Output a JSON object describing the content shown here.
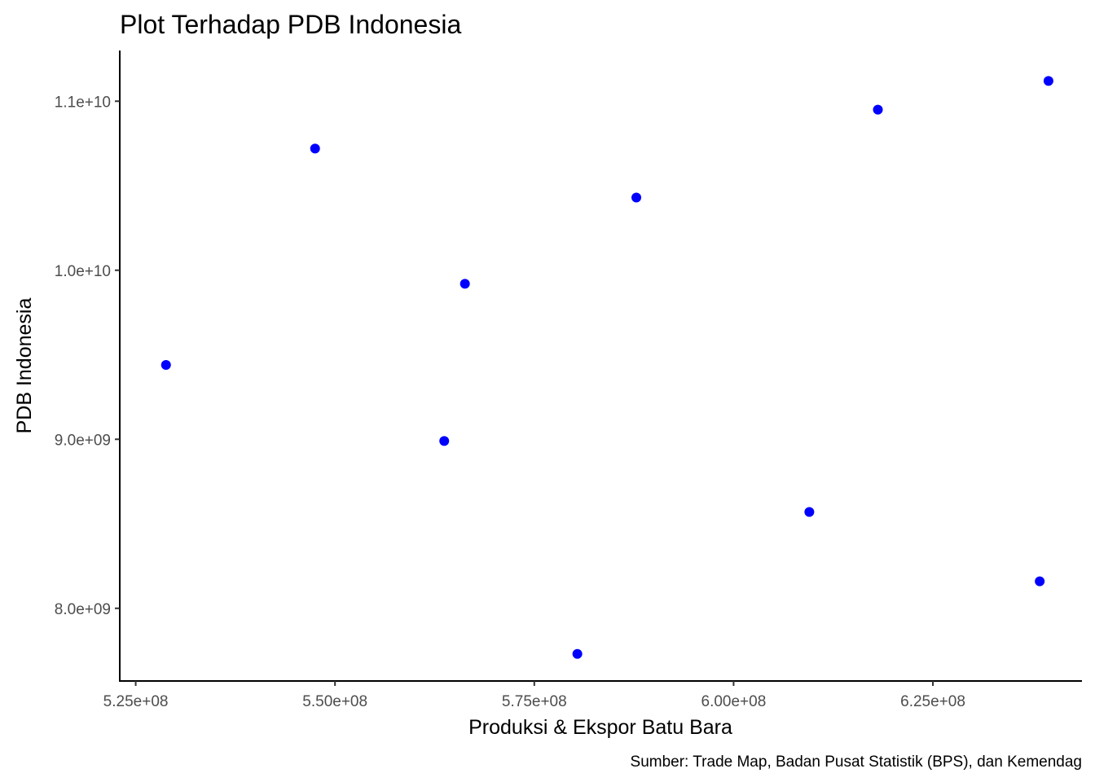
{
  "chart_data": {
    "type": "scatter",
    "title": "Plot Terhadap PDB Indonesia",
    "xlabel": "Produksi & Ekspor Batu Bara",
    "ylabel": "PDB Indonesia",
    "caption": "Sumber:  Trade Map, Badan Pusat Statistik (BPS), dan Kemendag",
    "xlim": [
      523000000,
      643700000
    ],
    "ylim": [
      7570000000,
      11300000000
    ],
    "x_ticks": [
      {
        "value": 525000000,
        "label": "5.25e+08"
      },
      {
        "value": 550000000,
        "label": "5.50e+08"
      },
      {
        "value": 575000000,
        "label": "5.75e+08"
      },
      {
        "value": 600000000,
        "label": "6.00e+08"
      },
      {
        "value": 625000000,
        "label": "6.25e+08"
      }
    ],
    "y_ticks": [
      {
        "value": 8000000000,
        "label": "8.0e+09"
      },
      {
        "value": 9000000000,
        "label": "9.0e+09"
      },
      {
        "value": 10000000000,
        "label": "1.0e+10"
      },
      {
        "value": 11000000000,
        "label": "1.1e+10"
      }
    ],
    "point_color": "#0000ff",
    "grid": false,
    "points": [
      {
        "x": 528800000,
        "y": 9440000000
      },
      {
        "x": 547500000,
        "y": 10720000000
      },
      {
        "x": 563700000,
        "y": 8990000000
      },
      {
        "x": 566300000,
        "y": 9920000000
      },
      {
        "x": 580400000,
        "y": 7730000000
      },
      {
        "x": 587800000,
        "y": 10430000000
      },
      {
        "x": 609500000,
        "y": 8570000000
      },
      {
        "x": 618100000,
        "y": 10950000000
      },
      {
        "x": 638400000,
        "y": 8160000000
      },
      {
        "x": 639500000,
        "y": 11120000000
      }
    ]
  }
}
